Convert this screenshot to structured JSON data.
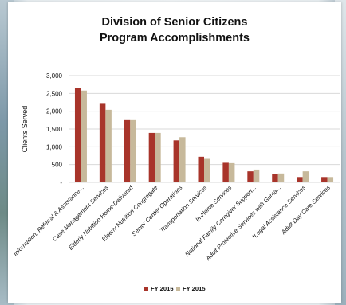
{
  "chart_data": {
    "type": "bar",
    "title": "Division of Senior Citizens",
    "subtitle": "Program Accomplishments",
    "ylabel": "Clients Served",
    "xlabel": "",
    "ylim": [
      0,
      3000
    ],
    "yticks": [
      {
        "value": 0,
        "label": "-"
      },
      {
        "value": 500,
        "label": "500"
      },
      {
        "value": 1000,
        "label": "1,000"
      },
      {
        "value": 1500,
        "label": "1,500"
      },
      {
        "value": 2000,
        "label": "2,000"
      },
      {
        "value": 2500,
        "label": "2,500"
      },
      {
        "value": 3000,
        "label": "3,000"
      }
    ],
    "grid": true,
    "legend_position": "bottom",
    "categories": [
      "Information, Referral & Assistance...",
      "Case Management Services",
      "Elderly Nutrition Home-Delivered",
      "Elderly Nutrition Congregate",
      "Senior Center Operations",
      "Transportation Services",
      "In-Home Services",
      "National Family Caregiver Support...",
      "Adult Protective Services with Guma...",
      "*Legal Assistance Services",
      "Adult Day Care Services"
    ],
    "series": [
      {
        "name": "FY 2016",
        "color": "#a8342a",
        "values": [
          2650,
          2230,
          1750,
          1390,
          1180,
          720,
          550,
          310,
          230,
          150,
          150
        ]
      },
      {
        "name": "FY 2015",
        "color": "#c7b99b",
        "values": [
          2580,
          2040,
          1750,
          1390,
          1270,
          660,
          540,
          360,
          250,
          310,
          150
        ]
      }
    ]
  }
}
